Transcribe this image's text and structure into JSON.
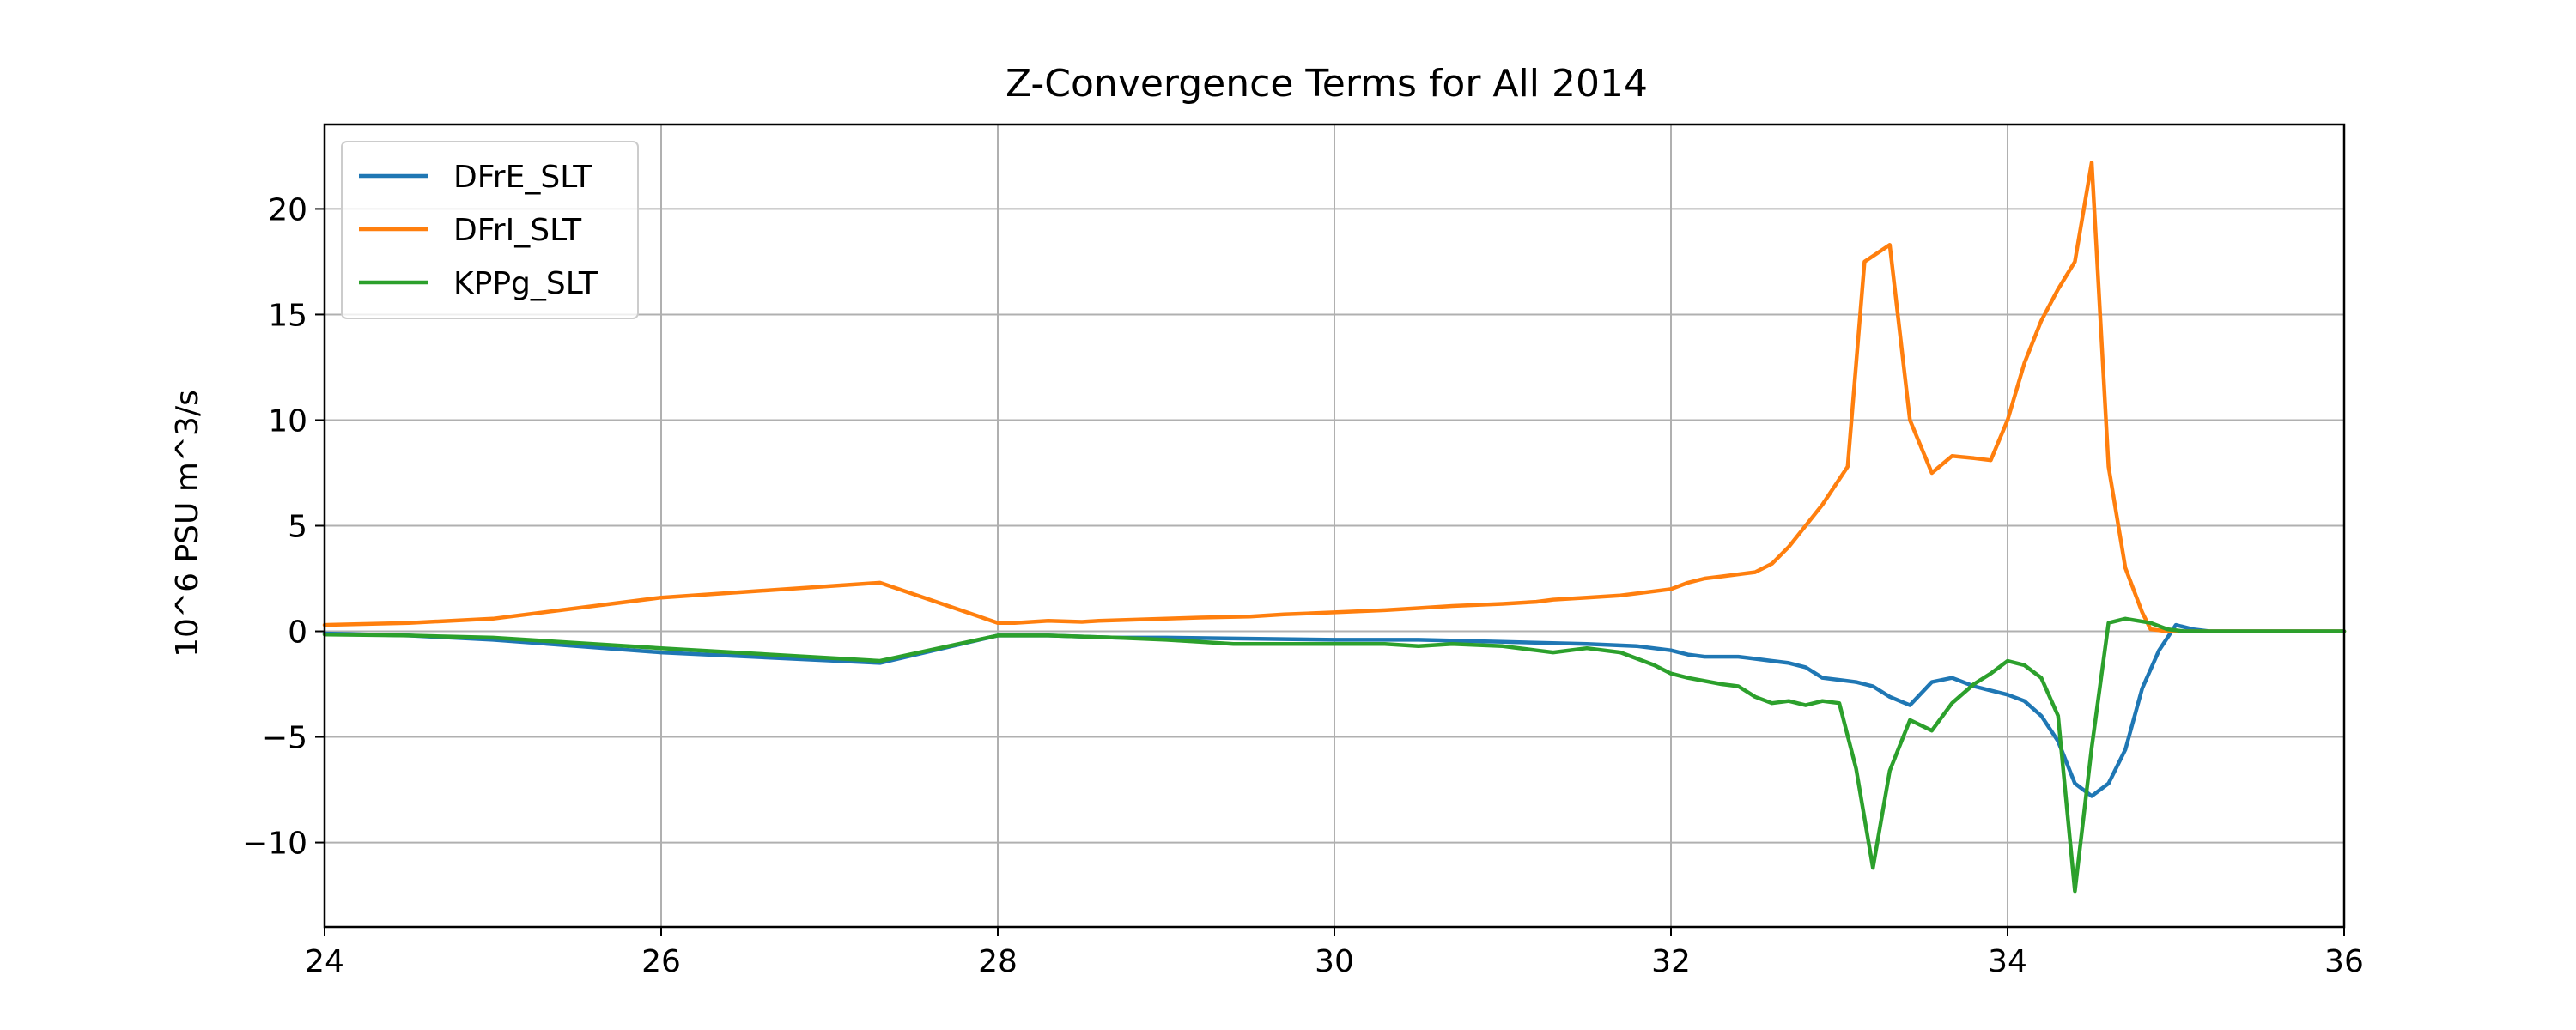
{
  "chart_data": {
    "type": "line",
    "title": "Z-Convergence Terms for All 2014",
    "xlabel": "",
    "ylabel": "10^6 PSU m^3/s",
    "xlim": [
      24,
      36
    ],
    "ylim": [
      -14,
      24
    ],
    "xticks": [
      24,
      26,
      28,
      30,
      32,
      34,
      36
    ],
    "yticks": [
      -10,
      -5,
      0,
      5,
      10,
      15,
      20
    ],
    "ytick_labels": [
      "−10",
      "−5",
      "0",
      "5",
      "10",
      "15",
      "20"
    ],
    "grid": true,
    "legend_position": "top-left",
    "series": [
      {
        "name": "DFrE_SLT",
        "color": "#1f77b4",
        "x": [
          24.0,
          24.5,
          25.0,
          26.0,
          27.3,
          28.0,
          28.3,
          28.7,
          29.0,
          29.5,
          30.0,
          30.5,
          31.0,
          31.5,
          31.8,
          32.0,
          32.1,
          32.2,
          32.3,
          32.4,
          32.5,
          32.6,
          32.7,
          32.8,
          32.9,
          33.0,
          33.1,
          33.2,
          33.3,
          33.42,
          33.55,
          33.67,
          33.8,
          33.9,
          34.0,
          34.1,
          34.2,
          34.3,
          34.4,
          34.5,
          34.6,
          34.7,
          34.8,
          34.9,
          35.0,
          35.1,
          35.2,
          35.3,
          35.4,
          35.5,
          35.6,
          36.0
        ],
        "y": [
          -0.1,
          -0.2,
          -0.4,
          -1.0,
          -1.5,
          -0.2,
          -0.2,
          -0.3,
          -0.3,
          -0.35,
          -0.4,
          -0.4,
          -0.5,
          -0.6,
          -0.7,
          -0.9,
          -1.1,
          -1.2,
          -1.2,
          -1.2,
          -1.3,
          -1.4,
          -1.5,
          -1.7,
          -2.2,
          -2.3,
          -2.4,
          -2.6,
          -3.1,
          -3.5,
          -2.4,
          -2.2,
          -2.6,
          -2.8,
          -3.0,
          -3.3,
          -4.0,
          -5.2,
          -7.2,
          -7.8,
          -7.2,
          -5.6,
          -2.7,
          -0.9,
          0.3,
          0.1,
          0.0,
          0.0,
          0.0,
          0.0,
          0.0,
          0.0
        ]
      },
      {
        "name": "DFrI_SLT",
        "color": "#ff7f0e",
        "x": [
          24.0,
          24.5,
          25.0,
          26.0,
          27.3,
          28.0,
          28.1,
          28.3,
          28.5,
          28.6,
          28.8,
          29.0,
          29.2,
          29.5,
          29.7,
          30.0,
          30.3,
          30.5,
          30.7,
          31.0,
          31.2,
          31.3,
          31.5,
          31.7,
          31.9,
          32.0,
          32.1,
          32.2,
          32.3,
          32.5,
          32.6,
          32.7,
          32.8,
          32.9,
          33.05,
          33.15,
          33.3,
          33.42,
          33.55,
          33.67,
          33.8,
          33.9,
          34.0,
          34.1,
          34.2,
          34.3,
          34.4,
          34.5,
          34.6,
          34.7,
          34.8,
          34.85,
          34.95,
          35.05,
          35.15,
          35.25,
          35.35,
          35.45,
          35.6,
          36.0
        ],
        "y": [
          0.3,
          0.4,
          0.6,
          1.6,
          2.3,
          0.4,
          0.4,
          0.5,
          0.45,
          0.5,
          0.55,
          0.6,
          0.65,
          0.7,
          0.8,
          0.9,
          1.0,
          1.1,
          1.2,
          1.3,
          1.4,
          1.5,
          1.6,
          1.7,
          1.9,
          2.0,
          2.3,
          2.5,
          2.6,
          2.8,
          3.2,
          4.0,
          5.0,
          6.0,
          7.8,
          17.5,
          18.3,
          10.0,
          7.5,
          8.3,
          8.2,
          8.1,
          10.0,
          12.7,
          14.7,
          16.2,
          17.5,
          22.2,
          7.8,
          3.0,
          0.9,
          0.1,
          0.0,
          0.0,
          0.0,
          0.0,
          0.0,
          0.0,
          0.0,
          0.0
        ]
      },
      {
        "name": "KPPg_SLT",
        "color": "#2ca02c",
        "x": [
          24.0,
          24.5,
          25.0,
          26.0,
          27.3,
          28.0,
          28.3,
          28.7,
          29.0,
          29.2,
          29.4,
          29.5,
          29.7,
          30.0,
          30.3,
          30.5,
          30.7,
          31.0,
          31.2,
          31.3,
          31.5,
          31.7,
          31.9,
          32.0,
          32.1,
          32.3,
          32.4,
          32.5,
          32.6,
          32.7,
          32.8,
          32.9,
          33.0,
          33.1,
          33.2,
          33.3,
          33.42,
          33.55,
          33.67,
          33.8,
          33.9,
          34.0,
          34.1,
          34.2,
          34.3,
          34.4,
          34.5,
          34.6,
          34.7,
          34.85,
          34.95,
          35.05,
          35.15,
          35.25,
          35.35,
          35.45,
          35.6,
          36.0
        ],
        "y": [
          -0.15,
          -0.2,
          -0.3,
          -0.8,
          -1.4,
          -0.2,
          -0.2,
          -0.3,
          -0.4,
          -0.5,
          -0.6,
          -0.6,
          -0.6,
          -0.6,
          -0.6,
          -0.7,
          -0.6,
          -0.7,
          -0.9,
          -1.0,
          -0.8,
          -1.0,
          -1.6,
          -2.0,
          -2.2,
          -2.5,
          -2.6,
          -3.1,
          -3.4,
          -3.3,
          -3.5,
          -3.3,
          -3.4,
          -6.5,
          -11.2,
          -6.6,
          -4.2,
          -4.7,
          -3.4,
          -2.5,
          -2.0,
          -1.4,
          -1.6,
          -2.2,
          -4.0,
          -12.3,
          -5.5,
          0.4,
          0.6,
          0.4,
          0.1,
          0.0,
          0.0,
          0.0,
          0.0,
          0.0,
          0.0,
          0.0
        ]
      }
    ]
  }
}
